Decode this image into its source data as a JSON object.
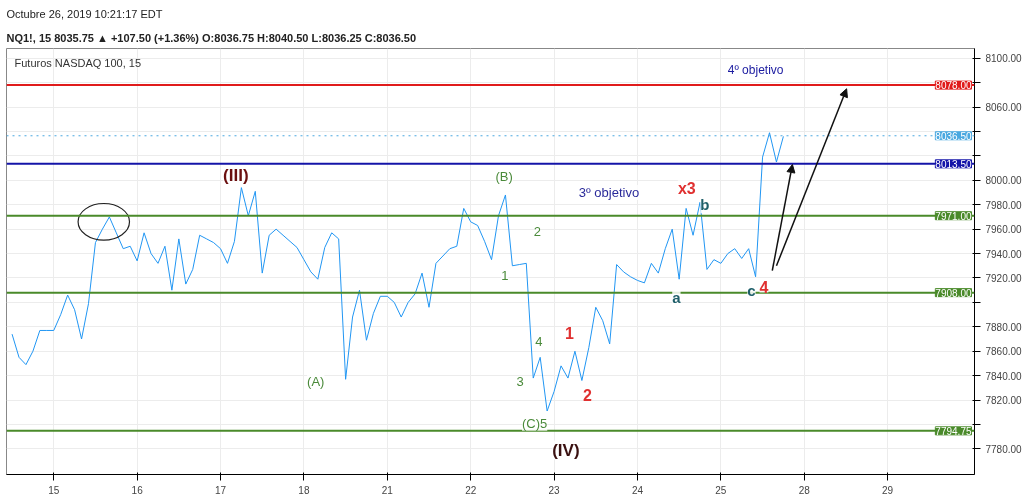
{
  "chart_data": {
    "type": "line",
    "title": "Futuros NASDAQ 100, 15",
    "subtitle": "Octubre 26, 2019 10:21:17 EDT",
    "categories": [
      null,
      null,
      null,
      null,
      null,
      null,
      "15",
      null,
      null,
      null,
      null,
      null,
      null,
      null,
      null,
      null,
      null,
      null,
      "16",
      null,
      null,
      null,
      null,
      null,
      null,
      null,
      null,
      null,
      null,
      null,
      "17",
      null,
      null,
      null,
      null,
      null,
      null,
      null,
      null,
      null,
      null,
      null,
      "18",
      null,
      null,
      null,
      null,
      null,
      null,
      null,
      null,
      null,
      null,
      null,
      "21",
      null,
      null,
      null,
      null,
      null,
      null,
      null,
      null,
      null,
      null,
      null,
      "22",
      null,
      null,
      null,
      null,
      null,
      null,
      null,
      null,
      null,
      null,
      null,
      "23",
      null,
      null,
      null,
      null,
      null,
      null,
      null,
      null,
      null,
      null,
      null,
      "24",
      null,
      null,
      null,
      null,
      null,
      null,
      null,
      null,
      null,
      null,
      null,
      "25",
      null,
      null,
      null,
      null,
      null,
      null,
      null,
      null,
      null,
      null,
      null,
      "28",
      null,
      null,
      null,
      null,
      null,
      null,
      null,
      null,
      null,
      null,
      null,
      "29",
      null,
      null,
      null,
      null,
      null,
      null,
      null,
      null,
      null,
      null,
      null,
      null
    ],
    "series": [
      {
        "color": "#2196f3",
        "values": [
          7874,
          7855,
          7849,
          7860,
          7877,
          7877,
          7877,
          7890,
          7906,
          7894,
          7870,
          7899,
          7949,
          7960,
          7970,
          7957,
          7944,
          7946,
          7934,
          7957,
          7940,
          7932,
          7946,
          7910,
          7952,
          7915,
          7927,
          7955,
          7952,
          7949,
          7944,
          7932,
          7950,
          7994,
          7971,
          7991,
          7924,
          7955,
          7960,
          7955,
          7950,
          7945,
          7935,
          7925,
          7919,
          7945,
          7957,
          7952,
          7837,
          7888,
          7910,
          7869,
          7891,
          7905,
          7905,
          7900,
          7888,
          7900,
          7907,
          7924,
          7896,
          7932,
          7938,
          7944,
          7946,
          7977,
          7966,
          7963,
          7950,
          7935,
          7971,
          7988,
          7930,
          7931,
          7932,
          7838,
          7855,
          7811,
          7827,
          7848,
          7838,
          7860,
          7836,
          7863,
          7896,
          7885,
          7866,
          7931,
          7925,
          7921,
          7918,
          7916,
          7932,
          7924,
          7944,
          7960,
          7919,
          7977,
          7955,
          7982,
          7927,
          7935,
          7932,
          7940,
          7944,
          7936,
          7944,
          7921,
          8019,
          8039,
          8015,
          8036,
          null,
          null,
          null,
          null,
          null,
          null,
          null,
          null,
          null,
          null,
          null,
          null,
          null,
          null,
          null,
          null,
          null,
          null,
          null,
          null,
          null,
          null,
          null,
          null,
          null,
          null,
          null
        ]
      }
    ],
    "ylim": [
      7759,
      8108
    ],
    "yticks": [
      {
        "value": 7780,
        "label": "7780.00"
      },
      {
        "value": 7800,
        "label": null
      },
      {
        "value": 7820,
        "label": "7820.00"
      },
      {
        "value": 7840,
        "label": "7840.00"
      },
      {
        "value": 7860,
        "label": "7860.00"
      },
      {
        "value": 7880,
        "label": "7880.00"
      },
      {
        "value": 7900,
        "label": null
      },
      {
        "value": 7920,
        "label": "7920.00"
      },
      {
        "value": 7940,
        "label": "7940.00"
      },
      {
        "value": 7960,
        "label": "7960.00"
      },
      {
        "value": 7980,
        "label": "7980.00"
      },
      {
        "value": 8000,
        "label": "8000.00"
      },
      {
        "value": 8020,
        "label": null
      },
      {
        "value": 8040,
        "label": null
      },
      {
        "value": 8060,
        "label": "8060.00"
      },
      {
        "value": 8080,
        "label": null
      },
      {
        "value": 8100,
        "label": "8100.00"
      }
    ],
    "grid": true,
    "ref_lines": [
      {
        "axis": "y",
        "value": 8078,
        "label": "8078.00",
        "color": "#e01b1b"
      },
      {
        "axis": "y",
        "value": 8036.5,
        "label": "8036.50",
        "color": "#4aa8e0",
        "line_style": "dotted"
      },
      {
        "axis": "y",
        "value": 8013.5,
        "label": "8013.50",
        "color": "#1414a8"
      },
      {
        "axis": "y",
        "value": 7971,
        "label": "7971.00",
        "color": "#4a8a2a"
      },
      {
        "axis": "y",
        "value": 7908,
        "label": "7908.00",
        "color": "#4a8a2a"
      },
      {
        "axis": "y",
        "value": 7794.75,
        "label": "7794.75",
        "color": "#4a8a2a"
      }
    ],
    "annotations": [
      "NQ1!, 15  8035.75 ▲ +107.50 (+1.36%) O:8036.75 H:8040.50 L:8036.25 C:8036.50",
      "(III)",
      "(A)",
      "(B)",
      "1",
      "2",
      "3",
      "4",
      "(C)5",
      "(IV)",
      "1",
      "2",
      "3º objetivo",
      "x3",
      "b",
      "a",
      "c",
      {
        "text": "4",
        "y": 7913
      },
      "4º objetivo"
    ]
  }
}
